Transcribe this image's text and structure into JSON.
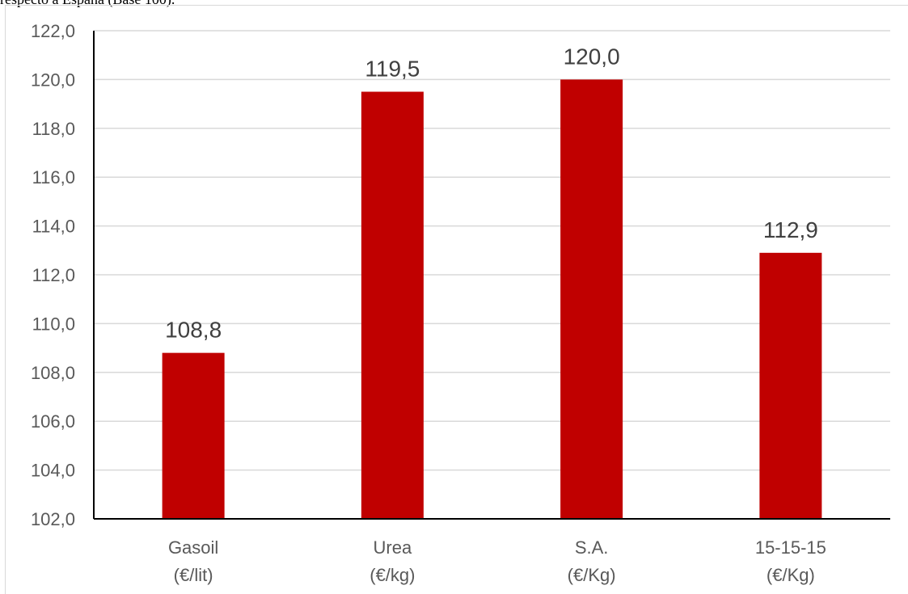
{
  "caption_fragment": "respecto a España (Base 100).",
  "chart_data": {
    "type": "bar",
    "title": "",
    "xlabel": "",
    "ylabel": "",
    "categories": [
      [
        "Gasoil",
        "(€/lit)"
      ],
      [
        "Urea",
        "(€/kg)"
      ],
      [
        "S.A.",
        "(€/Kg)"
      ],
      [
        "15-15-15",
        "(€/Kg)"
      ]
    ],
    "values": [
      108.8,
      119.5,
      120.0,
      112.9
    ],
    "value_labels": [
      "108,8",
      "119,5",
      "120,0",
      "112,9"
    ],
    "ylim": [
      102,
      122
    ],
    "yticks": [
      102,
      104,
      106,
      108,
      110,
      112,
      114,
      116,
      118,
      120,
      122
    ],
    "ytick_labels": [
      "102,0",
      "104,0",
      "106,0",
      "108,0",
      "110,0",
      "112,0",
      "114,0",
      "116,0",
      "118,0",
      "120,0",
      "122,0"
    ],
    "grid": true,
    "legend": "none",
    "bar_color": "#c00000"
  }
}
